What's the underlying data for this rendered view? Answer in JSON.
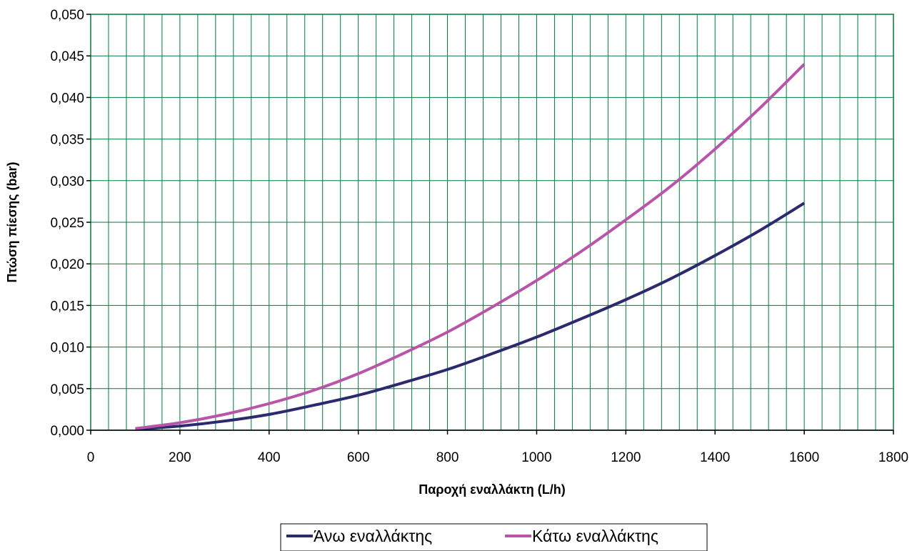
{
  "chart_data": {
    "type": "line",
    "title": "",
    "xlabel": "Παροχή εναλλάκτη (L/h)",
    "ylabel": "Πτώση πίεσης (bar)",
    "xlim": [
      0,
      1800
    ],
    "ylim": [
      0,
      0.05
    ],
    "x_ticks": [
      0,
      200,
      400,
      600,
      800,
      1000,
      1200,
      1400,
      1600,
      1800
    ],
    "x_tick_labels": [
      "0",
      "200",
      "400",
      "600",
      "800",
      "1000",
      "1200",
      "1400",
      "1600",
      "1800"
    ],
    "y_ticks": [
      0,
      0.005,
      0.01,
      0.015,
      0.02,
      0.025,
      0.03,
      0.035,
      0.04,
      0.045,
      0.05
    ],
    "y_tick_labels": [
      "0,000",
      "0,005",
      "0,010",
      "0,015",
      "0,020",
      "0,025",
      "0,030",
      "0,035",
      "0,040",
      "0,045",
      "0,050"
    ],
    "x_minor_step": 40,
    "grid": true,
    "legend_position": "bottom",
    "x": [
      100,
      200,
      300,
      400,
      500,
      600,
      700,
      800,
      900,
      1000,
      1100,
      1200,
      1300,
      1400,
      1500,
      1600
    ],
    "series": [
      {
        "name": "Άνω εναλλάκτης",
        "color": "#2b2a6e",
        "values": [
          0.0001,
          0.0005,
          0.0011,
          0.0019,
          0.003,
          0.0042,
          0.0057,
          0.0073,
          0.0092,
          0.0112,
          0.0134,
          0.0157,
          0.0182,
          0.021,
          0.024,
          0.0273
        ]
      },
      {
        "name": "Κάτω εναλλάκτης",
        "color": "#b855a8",
        "values": [
          0.0002,
          0.0009,
          0.0019,
          0.0032,
          0.0048,
          0.0068,
          0.0092,
          0.0118,
          0.0148,
          0.018,
          0.0215,
          0.0253,
          0.0293,
          0.0338,
          0.0387,
          0.044
        ]
      }
    ]
  },
  "colors": {
    "plot_background": "#00a651",
    "grid": "#007a3d",
    "plot_border": "#007a3d"
  }
}
